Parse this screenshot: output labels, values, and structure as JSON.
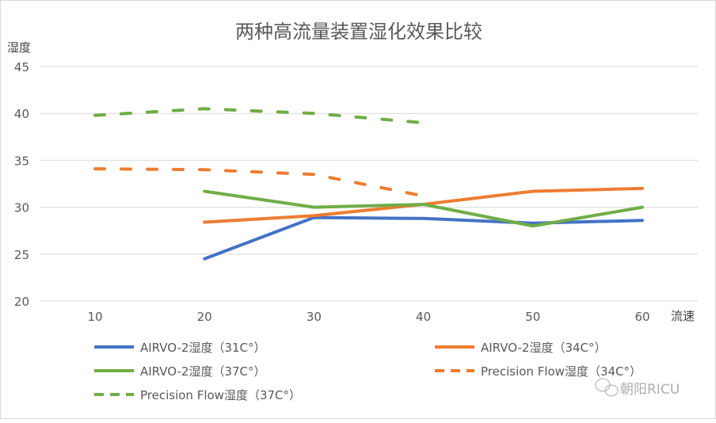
{
  "chart_data": {
    "type": "line",
    "title": "两种高流量装置湿化效果比较",
    "xlabel": "流速",
    "ylabel": "湿度",
    "x": [
      10,
      20,
      30,
      40,
      50,
      60
    ],
    "ylim": [
      20,
      45
    ],
    "yticks": [
      20,
      25,
      30,
      35,
      40,
      45
    ],
    "grid": true,
    "legend_placement": "bottom",
    "series": [
      {
        "name": "AIRVO-2湿度（31C°）",
        "color": "#4472C4",
        "dash": false,
        "values": [
          null,
          24.5,
          28.9,
          28.8,
          28.3,
          28.6
        ]
      },
      {
        "name": "AIRVO-2湿度（34C°）",
        "color": "#ED7D31",
        "dash": false,
        "values": [
          null,
          28.4,
          29.1,
          30.3,
          31.7,
          32.0
        ]
      },
      {
        "name": "AIRVO-2湿度（37C°）",
        "color": "#70AD47",
        "dash": false,
        "values": [
          null,
          31.7,
          30.0,
          30.3,
          28.0,
          30.0
        ]
      },
      {
        "name": "Precision Flow湿度（34C°）",
        "color": "#ED7D31",
        "dash": true,
        "values": [
          34.1,
          34.0,
          33.5,
          31.2,
          null,
          null
        ]
      },
      {
        "name": "Precision Flow湿度（37C°）",
        "color": "#70AD47",
        "dash": true,
        "values": [
          39.8,
          40.5,
          40.0,
          39.0,
          null,
          null
        ]
      }
    ]
  },
  "watermark": "朝阳RICU"
}
